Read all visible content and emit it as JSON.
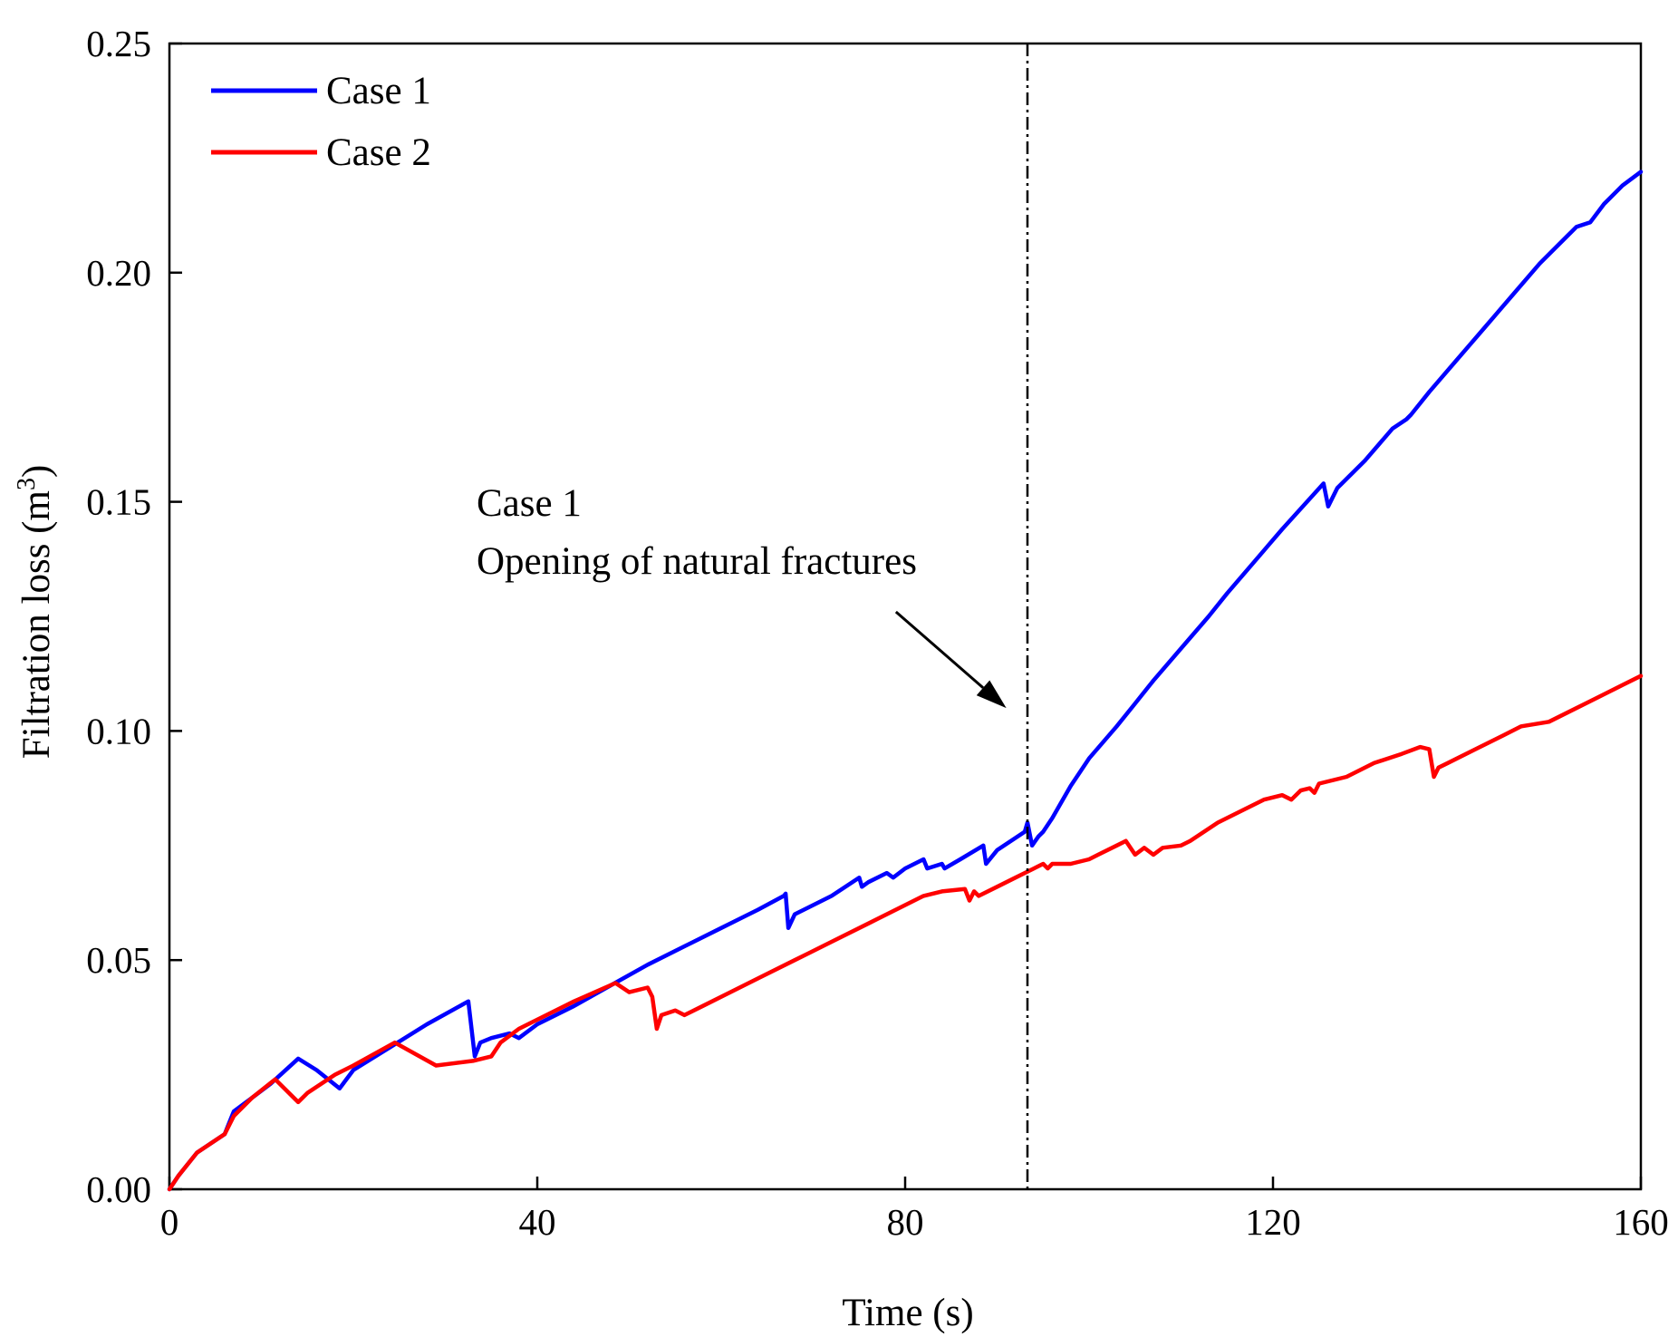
{
  "chart_data": {
    "type": "line",
    "title": "",
    "xlabel": "Time (s)",
    "ylabel": "Filtration loss (m",
    "ylabel_superscript": "3",
    "ylabel_suffix": ")",
    "xlim": [
      0,
      160
    ],
    "ylim": [
      0,
      0.25
    ],
    "xticks": [
      0,
      40,
      80,
      120,
      160
    ],
    "xtick_labels": [
      "0",
      "40",
      "80",
      "120",
      "160"
    ],
    "yticks": [
      0,
      0.05,
      0.1,
      0.15,
      0.2,
      0.25
    ],
    "ytick_labels": [
      "0.00",
      "0.05",
      "0.10",
      "0.15",
      "0.20",
      "0.25"
    ],
    "grid": false,
    "legend_position": "top-left",
    "series": [
      {
        "name": "Case 1",
        "color": "#0000ff",
        "x": [
          0,
          1,
          3,
          6,
          7,
          9,
          11,
          14,
          16,
          18.5,
          20,
          24,
          28,
          32.5,
          33.2,
          33.8,
          35,
          37,
          38,
          40,
          44,
          48,
          52,
          56,
          60,
          64,
          66.8,
          67,
          67.3,
          68,
          72,
          75,
          75.3,
          76,
          78,
          78.7,
          80,
          82,
          82.4,
          84,
          84.3,
          86,
          88.5,
          88.8,
          90,
          93,
          93.3,
          93.8,
          94.5,
          95,
          96,
          98,
          100,
          103,
          105,
          107,
          110,
          113,
          115,
          118,
          121,
          125.5,
          126,
          127,
          130,
          133,
          134.5,
          135,
          137,
          140,
          143,
          146,
          149,
          152,
          153,
          154.5,
          156,
          158,
          160
        ],
        "y": [
          0,
          0.003,
          0.008,
          0.012,
          0.017,
          0.02,
          0.023,
          0.0285,
          0.026,
          0.022,
          0.026,
          0.031,
          0.036,
          0.041,
          0.029,
          0.032,
          0.033,
          0.034,
          0.033,
          0.036,
          0.04,
          0.0445,
          0.049,
          0.053,
          0.057,
          0.061,
          0.064,
          0.0645,
          0.057,
          0.06,
          0.064,
          0.068,
          0.066,
          0.067,
          0.069,
          0.068,
          0.07,
          0.072,
          0.07,
          0.071,
          0.07,
          0.072,
          0.075,
          0.071,
          0.074,
          0.078,
          0.08,
          0.075,
          0.077,
          0.078,
          0.081,
          0.088,
          0.094,
          0.101,
          0.106,
          0.111,
          0.118,
          0.125,
          0.13,
          0.137,
          0.144,
          0.154,
          0.149,
          0.153,
          0.159,
          0.166,
          0.168,
          0.169,
          0.174,
          0.181,
          0.188,
          0.195,
          0.202,
          0.208,
          0.21,
          0.211,
          0.215,
          0.219,
          0.222
        ]
      },
      {
        "name": "Case 2",
        "color": "#ff0000",
        "x": [
          0,
          1,
          3,
          6,
          7,
          9,
          11.5,
          14,
          15,
          18,
          20,
          24.5,
          29,
          33,
          35,
          36,
          38,
          40,
          44,
          48.5,
          50,
          52,
          52.5,
          53,
          53.5,
          55,
          56,
          58,
          61,
          64,
          68,
          72,
          76,
          80,
          82,
          84,
          86.5,
          87,
          87.5,
          88,
          90,
          92,
          93,
          94,
          95,
          95.5,
          96,
          98,
          100,
          101,
          103,
          104,
          105,
          106,
          107,
          108,
          110,
          111,
          114,
          117,
          119,
          121,
          122,
          123,
          124,
          124.5,
          125,
          128,
          131,
          134,
          136,
          137,
          137.5,
          138,
          139,
          142,
          145,
          147,
          150,
          152,
          155,
          158,
          160
        ],
        "y": [
          0,
          0.003,
          0.008,
          0.012,
          0.016,
          0.02,
          0.024,
          0.019,
          0.021,
          0.025,
          0.027,
          0.032,
          0.027,
          0.028,
          0.029,
          0.032,
          0.035,
          0.037,
          0.041,
          0.045,
          0.043,
          0.044,
          0.042,
          0.035,
          0.038,
          0.039,
          0.038,
          0.04,
          0.043,
          0.046,
          0.05,
          0.054,
          0.058,
          0.062,
          0.064,
          0.065,
          0.0655,
          0.063,
          0.065,
          0.064,
          0.066,
          0.068,
          0.069,
          0.07,
          0.071,
          0.07,
          0.071,
          0.071,
          0.072,
          0.073,
          0.075,
          0.076,
          0.073,
          0.0745,
          0.073,
          0.0745,
          0.075,
          0.076,
          0.08,
          0.083,
          0.085,
          0.086,
          0.085,
          0.087,
          0.0875,
          0.0865,
          0.0885,
          0.09,
          0.093,
          0.095,
          0.0965,
          0.096,
          0.09,
          0.092,
          0.093,
          0.096,
          0.099,
          0.101,
          0.102,
          0.104,
          0.107,
          0.11,
          0.112
        ]
      }
    ],
    "vline": {
      "x": 93.3,
      "style": "dash-dot",
      "color": "#000000"
    },
    "annotation": {
      "lines": [
        "Case 1",
        "Opening of natural fractures"
      ],
      "arrow_from": [
        79,
        0.126
      ],
      "arrow_to": [
        91,
        0.105
      ]
    }
  }
}
